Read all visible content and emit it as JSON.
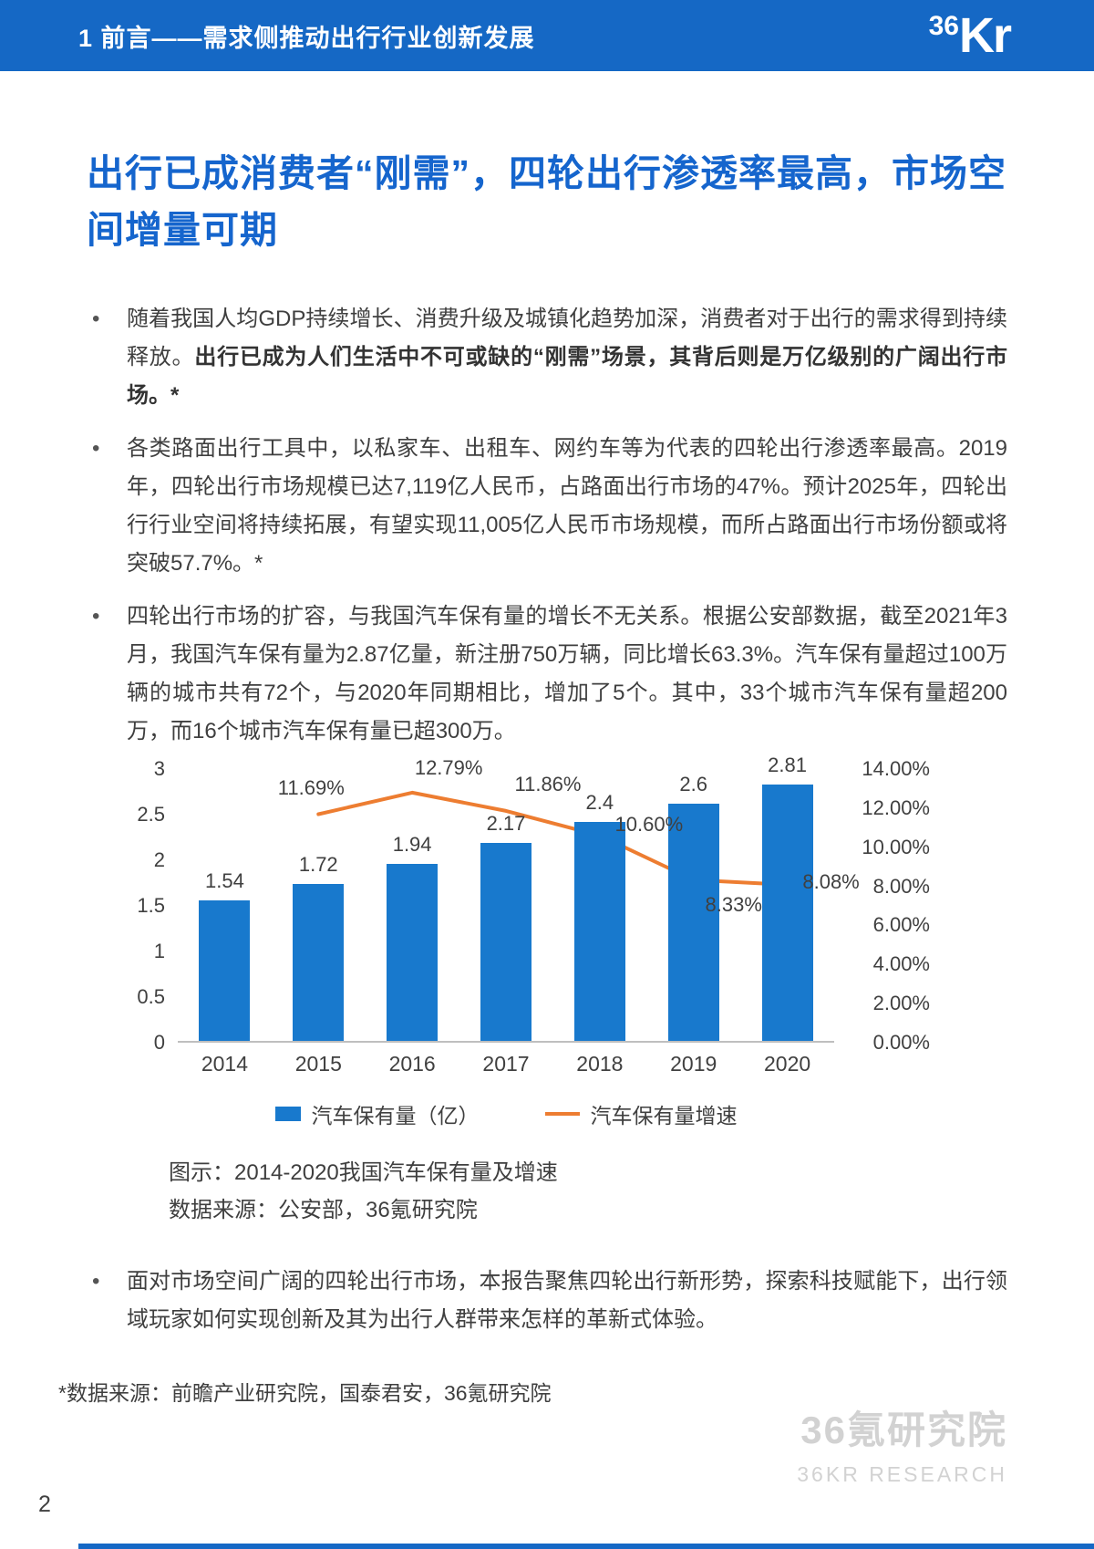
{
  "colors": {
    "header_bg": "#1568c5",
    "title": "#1565cd",
    "bar": "#1879cd",
    "line": "#ed7d31",
    "watermark": "#d2d2d2",
    "axis_text": "#404040"
  },
  "header": {
    "section_title": "1 前言——需求侧推动出行行业创新发展",
    "logo_36": "36",
    "logo_kr": "Kr"
  },
  "main": {
    "title": "出行已成消费者“刚需”，四轮出行渗透率最高，市场空间增量可期",
    "bullets": [
      {
        "normal": "随着我国人均GDP持续增长、消费升级及城镇化趋势加深，消费者对于出行的需求得到持续释放。",
        "bold": "出行已成为人们生活中不可或缺的“刚需”场景，其背后则是万亿级别的广阔出行市场。*"
      },
      {
        "normal": "各类路面出行工具中，以私家车、出租车、网约车等为代表的四轮出行渗透率最高。2019年，四轮出行市场规模已达7,119亿人民币，占路面出行市场的47%。预计2025年，四轮出行行业空间将持续拓展，有望实现11,005亿人民币市场规模，而所占路面出行市场份额或将突破57.7%。*",
        "bold": ""
      },
      {
        "normal": "四轮出行市场的扩容，与我国汽车保有量的增长不无关系。根据公安部数据，截至2021年3月，我国汽车保有量为2.87亿量，新注册750万辆，同比增长63.3%。汽车保有量超过100万辆的城市共有72个，与2020年同期相比，增加了5个。其中，33个城市汽车保有量超200万，而16个城市汽车保有量已超300万。",
        "bold": ""
      },
      {
        "normal": "面对市场空间广阔的四轮出行市场，本报告聚焦四轮出行新形势，探索科技赋能下，出行领域玩家如何实现创新及其为出行人群带来怎样的革新式体验。",
        "bold": ""
      }
    ]
  },
  "chart_data": {
    "type": "bar+line",
    "title": "2014-2020我国汽车保有量及增速",
    "categories": [
      "2014",
      "2015",
      "2016",
      "2017",
      "2018",
      "2019",
      "2020"
    ],
    "series": [
      {
        "name": "汽车保有量（亿）",
        "type": "bar",
        "axis": "left",
        "color": "#1879cd",
        "values": [
          1.54,
          1.72,
          1.94,
          2.17,
          2.4,
          2.6,
          2.81
        ],
        "labels": [
          "1.54",
          "1.72",
          "1.94",
          "2.17",
          "2.4",
          "2.6",
          "2.81"
        ]
      },
      {
        "name": "汽车保有量增速",
        "type": "line",
        "axis": "right",
        "color": "#ed7d31",
        "values": [
          null,
          11.69,
          12.79,
          11.86,
          10.6,
          8.33,
          8.08
        ],
        "labels": [
          "",
          "11.69%",
          "12.79%",
          "11.86%",
          "10.60%",
          "8.33%",
          "8.08%"
        ]
      }
    ],
    "left_axis": {
      "min": 0,
      "max": 3,
      "ticks": [
        3,
        2.5,
        2,
        1.5,
        1,
        0.5,
        0
      ],
      "tick_labels": [
        "3",
        "2.5",
        "2",
        "1.5",
        "1",
        "0.5",
        "0"
      ]
    },
    "right_axis": {
      "min": 0,
      "max": 14,
      "ticks": [
        14,
        12,
        10,
        8,
        6,
        4,
        2,
        0
      ],
      "tick_labels": [
        "14.00%",
        "12.00%",
        "10.00%",
        "8.00%",
        "6.00%",
        "4.00%",
        "2.00%",
        "0.00%"
      ]
    },
    "grid": false,
    "legend_position": "bottom",
    "caption": "图示：2014-2020我国汽车保有量及增速",
    "source": "数据来源：公安部，36氪研究院"
  },
  "legend": {
    "bar_label": "汽车保有量（亿）",
    "line_label": "汽车保有量增速"
  },
  "footnote": "*数据来源：前瞻产业研究院，国泰君安，36氪研究院",
  "footer": {
    "page_number": "2",
    "watermark_cn": "36氪研究院",
    "watermark_en": "36KR RESEARCH"
  }
}
